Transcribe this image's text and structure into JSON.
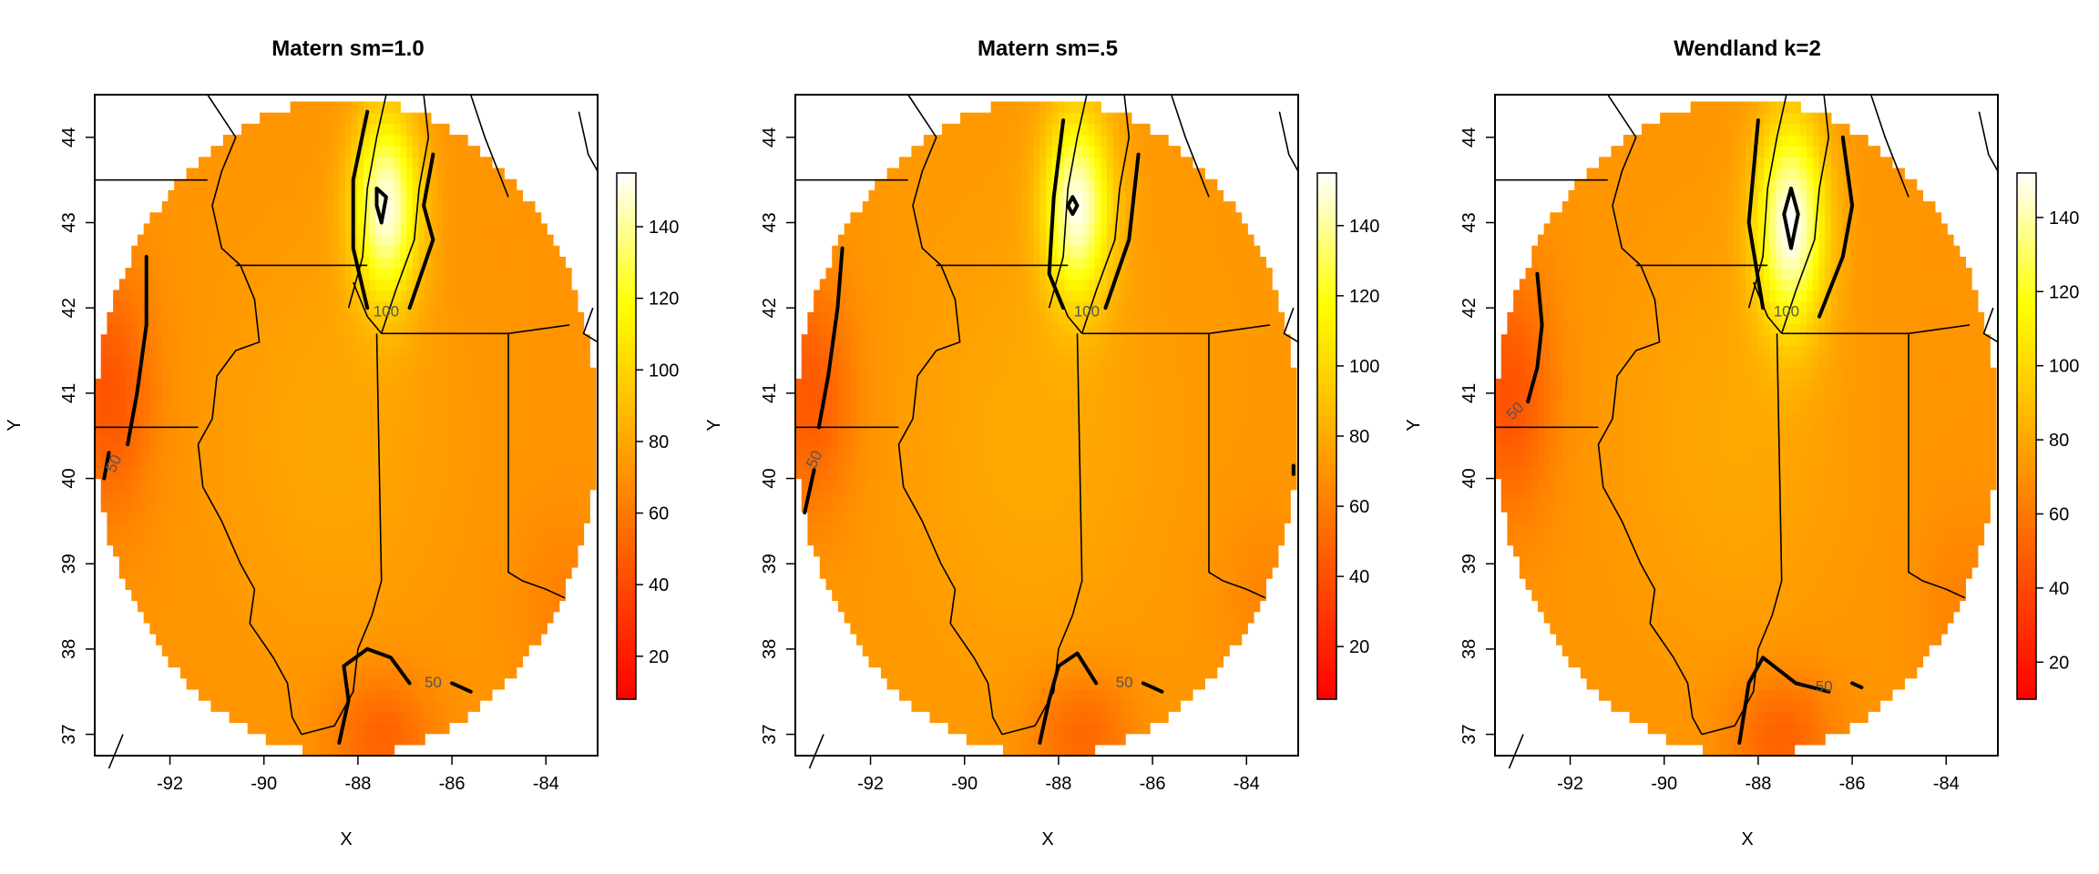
{
  "chart_data": [
    {
      "type": "heatmap",
      "title": "Matern sm=1.0",
      "xlabel": "X",
      "ylabel": "Y",
      "xlim": [
        -93.6,
        -82.9
      ],
      "ylim": [
        36.75,
        44.5
      ],
      "x_ticks": [
        "-92",
        "-90",
        "-88",
        "-86",
        "-84"
      ],
      "y_ticks": [
        "37",
        "38",
        "39",
        "40",
        "41",
        "42",
        "43",
        "44"
      ],
      "colorbar": {
        "range": [
          8,
          155
        ],
        "ticks": [
          "20",
          "40",
          "60",
          "80",
          "100",
          "120",
          "140"
        ]
      },
      "contour_labels": [
        "50",
        "100"
      ],
      "hotspot": {
        "x": -87.4,
        "y": 43.2,
        "value": 150
      }
    },
    {
      "type": "heatmap",
      "title": "Matern sm=.5",
      "xlabel": "X",
      "ylabel": "Y",
      "xlim": [
        -93.6,
        -82.9
      ],
      "ylim": [
        36.75,
        44.5
      ],
      "x_ticks": [
        "-92",
        "-90",
        "-88",
        "-86",
        "-84"
      ],
      "y_ticks": [
        "37",
        "38",
        "39",
        "40",
        "41",
        "42",
        "43",
        "44"
      ],
      "colorbar": {
        "range": [
          5,
          155
        ],
        "ticks": [
          "20",
          "40",
          "60",
          "80",
          "100",
          "120",
          "140"
        ]
      },
      "contour_labels": [
        "50",
        "100"
      ],
      "hotspot": {
        "x": -87.6,
        "y": 43.2,
        "value": 150
      }
    },
    {
      "type": "heatmap",
      "title": "Wendland k=2",
      "xlabel": "X",
      "ylabel": "Y",
      "xlim": [
        -93.6,
        -82.9
      ],
      "ylim": [
        36.75,
        44.5
      ],
      "x_ticks": [
        "-92",
        "-90",
        "-88",
        "-86",
        "-84"
      ],
      "y_ticks": [
        "37",
        "38",
        "39",
        "40",
        "41",
        "42",
        "43",
        "44"
      ],
      "colorbar": {
        "range": [
          10,
          152
        ],
        "ticks": [
          "20",
          "40",
          "60",
          "80",
          "100",
          "120",
          "140"
        ]
      },
      "contour_labels": [
        "50",
        "50",
        "100"
      ],
      "hotspot": {
        "x": -87.3,
        "y": 43.0,
        "value": 150
      }
    }
  ],
  "colors": {
    "low": "#ff0000",
    "mid": "#ff8000",
    "high": "#ffff00",
    "top": "#ffffff",
    "lines": "#000000"
  }
}
